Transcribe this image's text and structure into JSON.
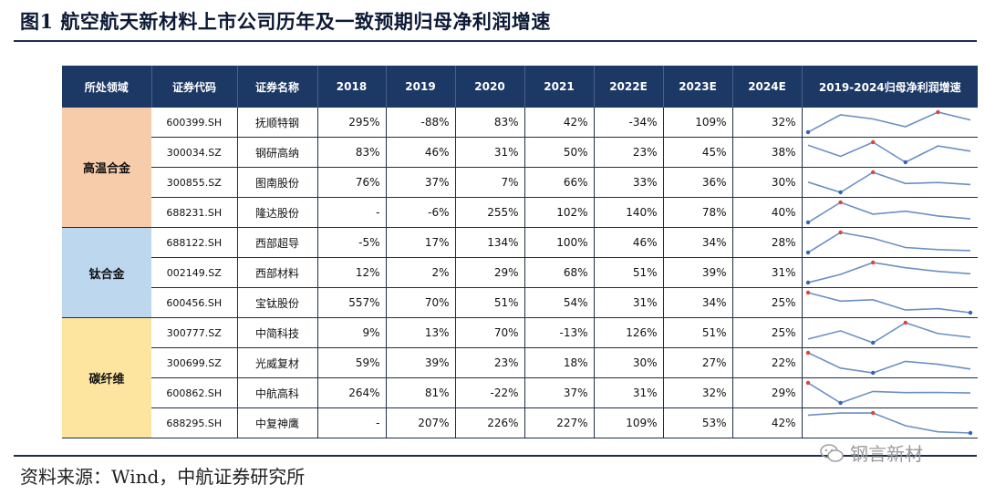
{
  "title": "图1  航空航天新材料上市公司历年及一致预期归母净利润增速",
  "headers": [
    "所处领域",
    "证券代码",
    "证券名称",
    "2018",
    "2019",
    "2020",
    "2021",
    "2022E",
    "2023E",
    "2024E",
    "2019-2024归母净利润增速"
  ],
  "regions": [
    {
      "name": "高温合金",
      "color": "#f7ccaa",
      "rows": 4
    },
    {
      "name": "钛合金",
      "color": "#bdd7ee",
      "rows": 3
    },
    {
      "name": "碳纤维",
      "color": "#fde5a0",
      "rows": 4
    }
  ],
  "rows": [
    {
      "code": "600399.SH",
      "name": "抚顺特钢",
      "vals": [
        "295%",
        "-88%",
        "83%",
        "42%",
        "-34%",
        "109%",
        "32%"
      ],
      "spark": [
        -88,
        83,
        42,
        -34,
        109,
        32
      ]
    },
    {
      "code": "300034.SZ",
      "name": "钢研高纳",
      "vals": [
        "83%",
        "46%",
        "31%",
        "50%",
        "23%",
        "45%",
        "38%"
      ],
      "spark": [
        46,
        31,
        50,
        23,
        45,
        38
      ]
    },
    {
      "code": "300855.SZ",
      "name": "图南股份",
      "vals": [
        "76%",
        "37%",
        "7%",
        "66%",
        "33%",
        "36%",
        "30%"
      ],
      "spark": [
        37,
        7,
        66,
        33,
        36,
        30
      ]
    },
    {
      "code": "688231.SH",
      "name": "隆达股份",
      "vals": [
        "-",
        "-6%",
        "255%",
        "102%",
        "140%",
        "78%",
        "40%"
      ],
      "spark": [
        -6,
        255,
        102,
        140,
        78,
        40
      ]
    },
    {
      "code": "688122.SH",
      "name": "西部超导",
      "vals": [
        "-5%",
        "17%",
        "134%",
        "100%",
        "46%",
        "34%",
        "28%"
      ],
      "spark": [
        17,
        134,
        100,
        46,
        34,
        28
      ]
    },
    {
      "code": "002149.SZ",
      "name": "西部材料",
      "vals": [
        "12%",
        "2%",
        "29%",
        "68%",
        "51%",
        "39%",
        "31%"
      ],
      "spark": [
        2,
        29,
        68,
        51,
        39,
        31
      ]
    },
    {
      "code": "600456.SH",
      "name": "宝钛股份",
      "vals": [
        "557%",
        "70%",
        "51%",
        "54%",
        "31%",
        "34%",
        "25%"
      ],
      "spark": [
        70,
        51,
        54,
        31,
        34,
        25
      ]
    },
    {
      "code": "300777.SZ",
      "name": "中简科技",
      "vals": [
        "9%",
        "13%",
        "70%",
        "-13%",
        "126%",
        "51%",
        "25%"
      ],
      "spark": [
        13,
        70,
        -13,
        126,
        51,
        25
      ]
    },
    {
      "code": "300699.SZ",
      "name": "光威复材",
      "vals": [
        "59%",
        "39%",
        "23%",
        "18%",
        "30%",
        "27%",
        "22%"
      ],
      "spark": [
        39,
        23,
        18,
        30,
        27,
        22
      ]
    },
    {
      "code": "600862.SH",
      "name": "中航高科",
      "vals": [
        "264%",
        "81%",
        "-22%",
        "37%",
        "31%",
        "32%",
        "29%"
      ],
      "spark": [
        81,
        -22,
        37,
        31,
        32,
        29
      ]
    },
    {
      "code": "688295.SH",
      "name": "中复神鹰",
      "vals": [
        "-",
        "207%",
        "226%",
        "227%",
        "109%",
        "53%",
        "42%"
      ],
      "spark": [
        207,
        226,
        227,
        109,
        53,
        42
      ]
    }
  ],
  "spark_colors": {
    "line": "#6b8fc4",
    "high": "#e0413a",
    "low": "#2f64b6"
  },
  "source": "资料来源：Wind，中航证券研究所",
  "watermark": "钢言新材"
}
